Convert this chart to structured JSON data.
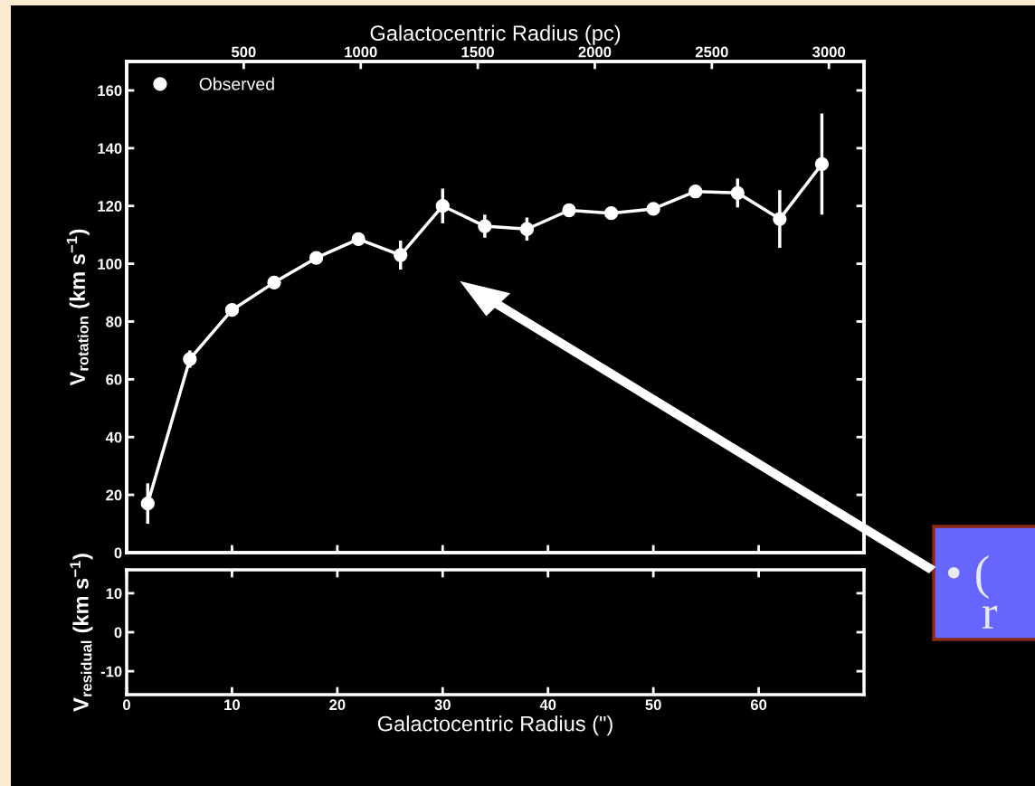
{
  "chart_data": [
    {
      "type": "line",
      "x": [
        2,
        6,
        10,
        14,
        18,
        22,
        26,
        30,
        34,
        38,
        42,
        46,
        50,
        54,
        58,
        62,
        66
      ],
      "series": [
        {
          "name": "Observed",
          "color": "#ffffff",
          "values": [
            17,
            67,
            84,
            93.5,
            102,
            108.5,
            103,
            120,
            113,
            112,
            118.5,
            117.5,
            119,
            125,
            124.5,
            115.5,
            134.5
          ],
          "errors": [
            7,
            3,
            null,
            null,
            null,
            null,
            5,
            6,
            4,
            4,
            null,
            null,
            null,
            null,
            5,
            10,
            17.5
          ]
        }
      ],
      "marker": "circle",
      "line_style": "solid",
      "legend": "top left",
      "xlim": [
        0,
        70
      ],
      "ylim": [
        0,
        170
      ],
      "yticks": [
        0,
        20,
        40,
        60,
        80,
        100,
        120,
        140,
        160
      ],
      "x2lim": [
        0,
        3150
      ],
      "x2ticks": [
        500,
        1000,
        1500,
        2000,
        2500,
        3000
      ],
      "x2label": "Galactocentric Radius (pc)",
      "ylabel": "V$_{rotation}$ (km s$^{−1}$)",
      "tick_labels": "y",
      "annotations": [
        "• (",
        "r"
      ]
    },
    {
      "type": "line",
      "xlim": [
        0,
        70
      ],
      "xticks": [
        0,
        10,
        20,
        30,
        40,
        50,
        60
      ],
      "ylim": [
        -16,
        16
      ],
      "yticks": [
        -10,
        0,
        10
      ],
      "xlabel": "Galactocentric Radius (\")",
      "ylabel": "V$_{residual}$ (km s$^{−1}$)"
    }
  ]
}
